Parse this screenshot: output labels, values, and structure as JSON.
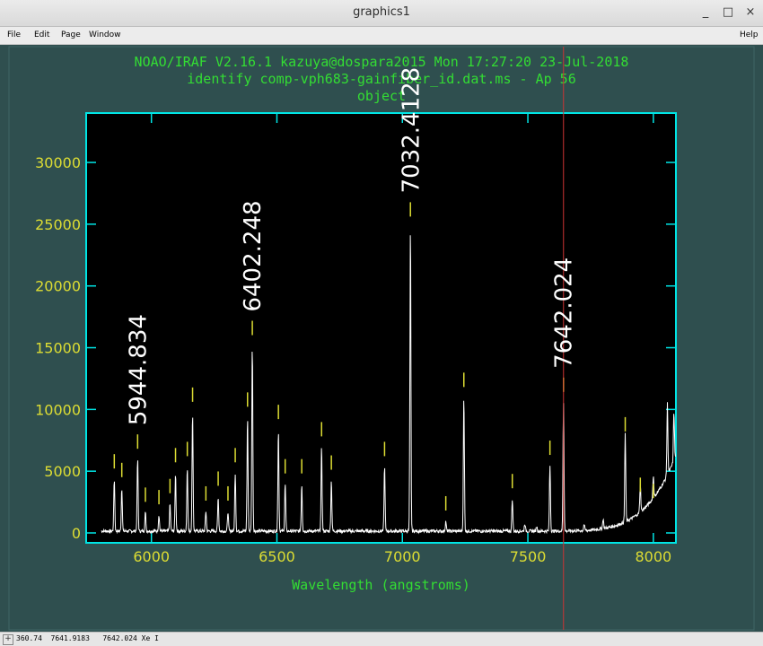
{
  "window": {
    "title": "graphics1",
    "controls": {
      "minimize": "_",
      "maximize": "□",
      "close": "×"
    }
  },
  "menubar": {
    "file": "File",
    "edit": "Edit",
    "page": "Page",
    "window": "Window",
    "help": "Help"
  },
  "statusbar": {
    "text": "360.74  7641.9183   7642.024 Xe I"
  },
  "colors": {
    "background": "#2f4f4f",
    "axes": "#00e5e5",
    "header": "#33dd33",
    "tick_labels": "#dddd33",
    "spectrum": "#ffffff",
    "line_marks": "#dddd33",
    "cursor": "#cc3333"
  },
  "chart_data": {
    "type": "line",
    "header": [
      "NOAO/IRAF V2.16.1 kazuya@dospara2015 Mon 17:27:20 23-Jul-2018",
      "identify comp-vph683-gainfiber_id.dat.ms - Ap 56",
      "object"
    ],
    "xlabel": "Wavelength (angstroms)",
    "ylabel": "",
    "xlim": [
      5740,
      8090
    ],
    "ylim": [
      -800,
      34000
    ],
    "xticks": [
      6000,
      6500,
      7000,
      7500,
      8000
    ],
    "yticks": [
      0,
      5000,
      10000,
      15000,
      20000,
      25000,
      30000
    ],
    "cursor_x": 7642.024,
    "peaks": [
      [
        5852,
        4200
      ],
      [
        5882,
        3500
      ],
      [
        5945,
        5800
      ],
      [
        5976,
        1500
      ],
      [
        6030,
        1300
      ],
      [
        6074,
        2200
      ],
      [
        6096,
        4700
      ],
      [
        6143,
        5200
      ],
      [
        6164,
        9600
      ],
      [
        6217,
        1600
      ],
      [
        6266,
        2800
      ],
      [
        6305,
        1600
      ],
      [
        6334,
        4700
      ],
      [
        6383,
        9200
      ],
      [
        6402,
        15000
      ],
      [
        6506,
        8200
      ],
      [
        6533,
        3800
      ],
      [
        6599,
        3800
      ],
      [
        6678,
        6800
      ],
      [
        6717,
        4100
      ],
      [
        6929,
        5200
      ],
      [
        7032,
        24600
      ],
      [
        7173,
        800
      ],
      [
        7245,
        10800
      ],
      [
        7438,
        2600
      ],
      [
        7488,
        600
      ],
      [
        7535,
        400
      ],
      [
        7588,
        5300
      ],
      [
        7642,
        10400
      ],
      [
        7724,
        500
      ],
      [
        7800,
        800
      ],
      [
        7888,
        7200
      ],
      [
        7948,
        2300
      ],
      [
        8000,
        1800
      ],
      [
        8056,
        5800
      ],
      [
        8082,
        4000
      ]
    ],
    "marks": [
      5852,
      5882,
      5945,
      5976,
      6030,
      6074,
      6096,
      6143,
      6164,
      6217,
      6266,
      6305,
      6334,
      6383,
      6402,
      6506,
      6533,
      6599,
      6678,
      6717,
      6929,
      7032,
      7173,
      7245,
      7438,
      7588,
      7642,
      7888,
      7948,
      8000
    ],
    "labels": [
      {
        "x": 5944.834,
        "text": "5944.834"
      },
      {
        "x": 6402.248,
        "text": "6402.248"
      },
      {
        "x": 7032.4128,
        "text": "7032.4128"
      },
      {
        "x": 7642.024,
        "text": "7642.024"
      }
    ]
  }
}
